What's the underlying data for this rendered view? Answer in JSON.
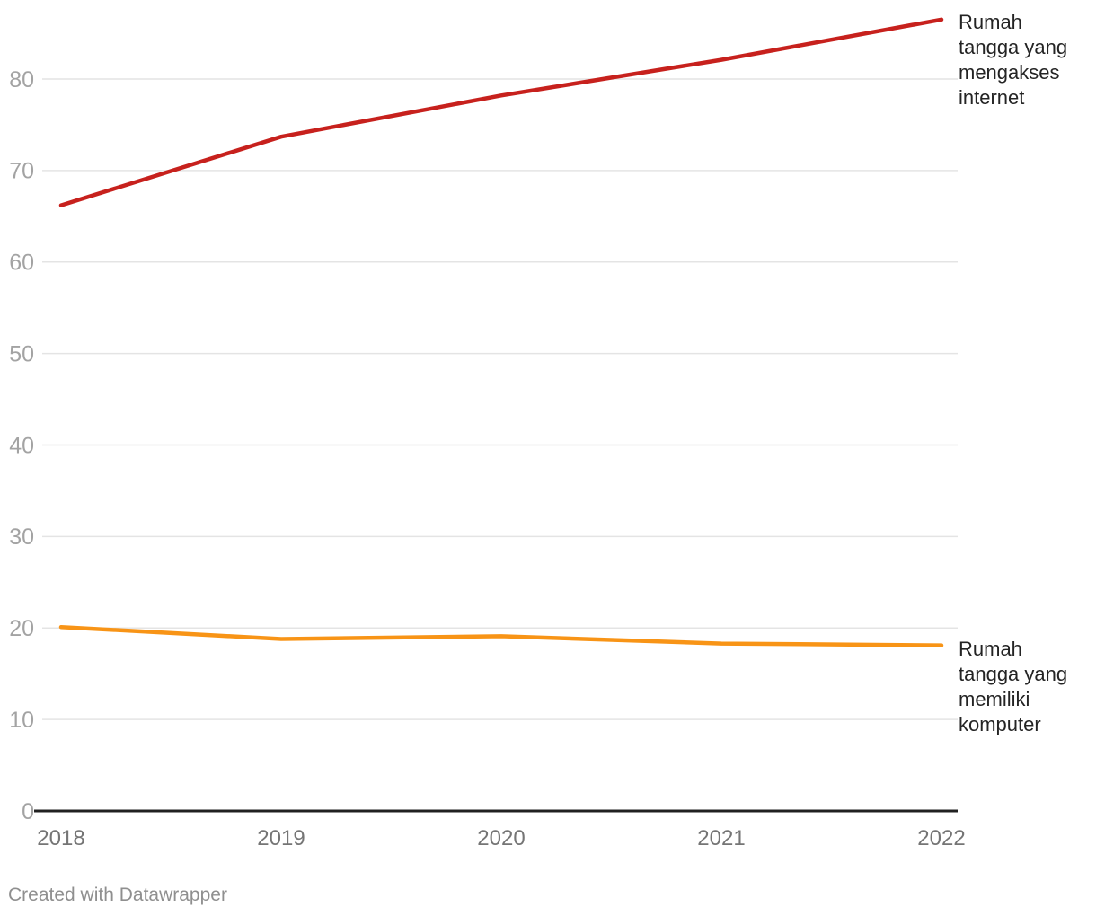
{
  "chart_data": {
    "type": "line",
    "x": [
      2018,
      2019,
      2020,
      2021,
      2022
    ],
    "series": [
      {
        "name": "Rumah tangga yang mengakses internet",
        "values": [
          66.2,
          73.7,
          78.2,
          82.1,
          86.5
        ],
        "color": "#c7211d"
      },
      {
        "name": "Rumah tangga yang memiliki komputer",
        "values": [
          20.1,
          18.8,
          19.1,
          18.3,
          18.1
        ],
        "color": "#f89416"
      }
    ],
    "title": "",
    "xlabel": "",
    "ylabel": "",
    "ylim": [
      0,
      88
    ],
    "yticks": [
      0,
      10,
      20,
      30,
      40,
      50,
      60,
      70,
      80
    ],
    "xticklabels": [
      "2018",
      "2019",
      "2020",
      "2021",
      "2022"
    ],
    "grid": true,
    "legend_position": "labels-at-line-ends-right"
  },
  "colors": {
    "internet_line": "#c7211d",
    "komputer_line": "#f89416",
    "gridline": "#e4e4e4",
    "axis_baseline": "#212121",
    "y_tick_text": "#a3a3a3",
    "x_tick_text": "#757575",
    "series_label_text": "#242424",
    "footer_text": "#8f8f8f"
  },
  "footer": {
    "credit": "Created with Datawrapper"
  }
}
